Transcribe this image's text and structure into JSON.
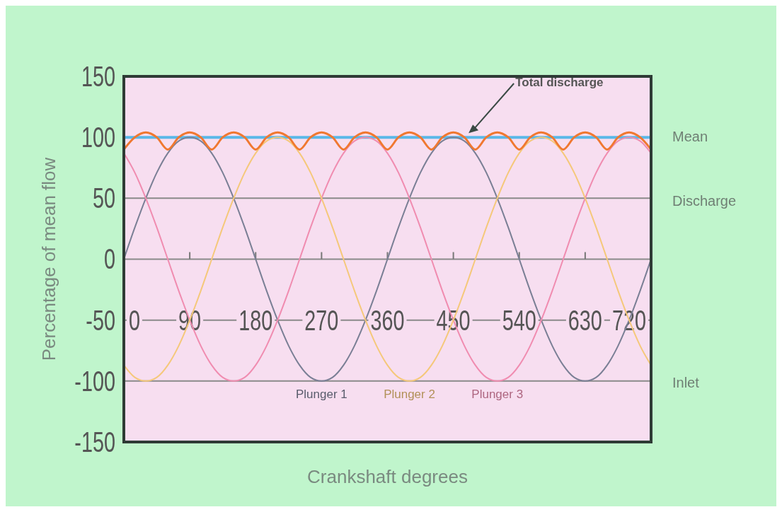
{
  "chart_data": {
    "type": "line",
    "xlabel": "Crankshaft degrees",
    "ylabel": "Percentage of mean flow",
    "xlim": [
      0,
      720
    ],
    "xticks": [
      0,
      90,
      180,
      270,
      360,
      450,
      540,
      630,
      720
    ],
    "ylim": [
      -150,
      150
    ],
    "yticks": [
      -150,
      -100,
      -50,
      0,
      50,
      100,
      150
    ],
    "grid": "y",
    "marker": "none",
    "line_style": "solid",
    "x": [
      0,
      15,
      30,
      45,
      60,
      75,
      90,
      105,
      120,
      135,
      150,
      165,
      180,
      195,
      210,
      225,
      240,
      255,
      270,
      285,
      300,
      315,
      330,
      345,
      360,
      375,
      390,
      405,
      420,
      435,
      450,
      465,
      480,
      495,
      510,
      525,
      540,
      555,
      570,
      585,
      600,
      615,
      630,
      645,
      660,
      675,
      690,
      705,
      720
    ],
    "series": [
      {
        "name": "Plunger 1",
        "color": "#7a7f95",
        "values": [
          0,
          26,
          50,
          71,
          87,
          97,
          100,
          97,
          87,
          71,
          50,
          26,
          0,
          -26,
          -50,
          -71,
          -87,
          -97,
          -100,
          -97,
          -87,
          -71,
          -50,
          -26,
          0,
          26,
          50,
          71,
          87,
          97,
          100,
          97,
          87,
          71,
          50,
          26,
          0,
          -26,
          -50,
          -71,
          -87,
          -97,
          -100,
          -97,
          -87,
          -71,
          -50,
          -26,
          0
        ]
      },
      {
        "name": "Plunger 3",
        "color": "#f08cb0",
        "values": [
          87,
          71,
          50,
          26,
          0,
          -26,
          -50,
          -71,
          -87,
          -97,
          -100,
          -97,
          -87,
          -71,
          -50,
          -26,
          0,
          26,
          50,
          71,
          87,
          97,
          100,
          97,
          87,
          71,
          50,
          26,
          0,
          -26,
          -50,
          -71,
          -87,
          -97,
          -100,
          -97,
          -87,
          -71,
          -50,
          -26,
          0,
          26,
          50,
          71,
          87,
          97,
          100,
          97,
          87
        ]
      },
      {
        "name": "Plunger 2",
        "color": "#f5c87a",
        "values": [
          -87,
          -97,
          -100,
          -97,
          -87,
          -71,
          -50,
          -26,
          0,
          26,
          50,
          71,
          87,
          97,
          100,
          97,
          87,
          71,
          50,
          26,
          0,
          -26,
          -50,
          -71,
          -87,
          -97,
          -100,
          -97,
          -87,
          -71,
          -50,
          -26,
          0,
          26,
          50,
          71,
          87,
          97,
          100,
          97,
          87,
          71,
          50,
          26,
          0,
          -26,
          -50,
          -71,
          -87
        ]
      },
      {
        "name": "Total discharge",
        "color": "#f07830",
        "values": [
          90,
          100,
          104,
          100,
          90,
          100,
          104,
          100,
          90,
          100,
          104,
          100,
          90,
          100,
          104,
          100,
          90,
          100,
          104,
          100,
          90,
          100,
          104,
          100,
          90,
          100,
          104,
          100,
          90,
          100,
          104,
          100,
          90,
          100,
          104,
          100,
          90,
          100,
          104,
          100,
          90,
          100,
          104,
          100,
          90,
          100,
          104,
          100,
          90
        ]
      }
    ],
    "ref_lines": [
      {
        "axis": "y",
        "value": 100,
        "label": "Mean",
        "color": "#5bb8e8"
      }
    ],
    "annotations": [
      "Discharge",
      "Inlet"
    ],
    "legend": false
  }
}
